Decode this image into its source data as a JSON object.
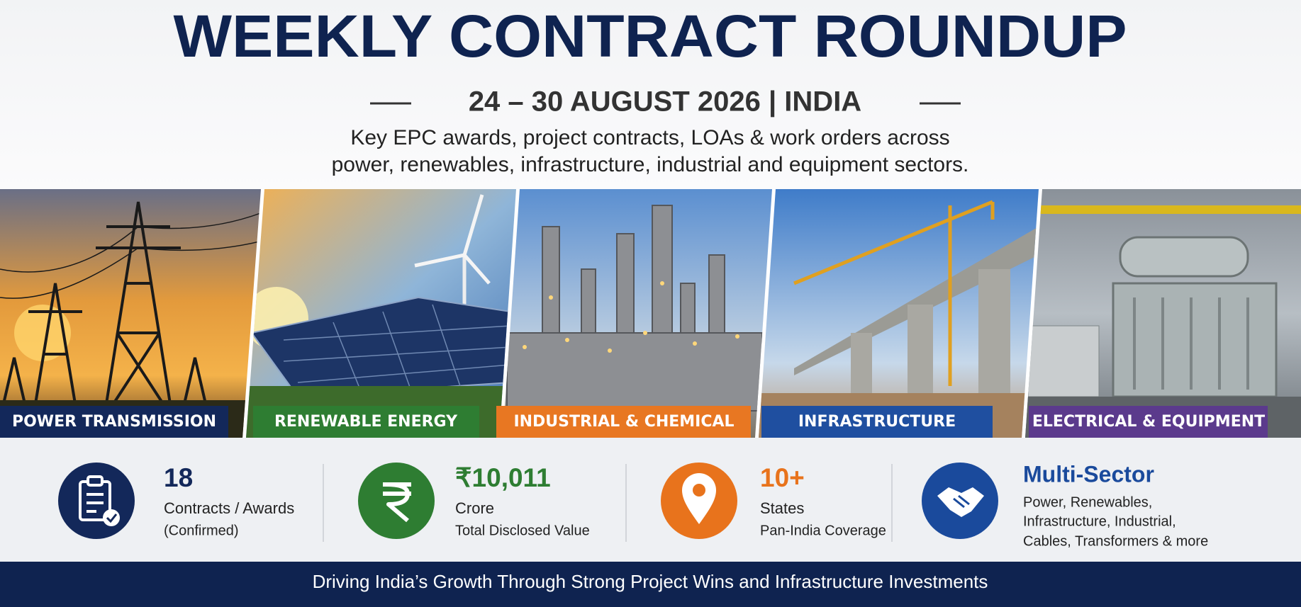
{
  "header": {
    "title": "WEEKLY CONTRACT ROUNDUP",
    "subtitle": "24 – 30 AUGUST 2026 | INDIA",
    "description": [
      "Key EPC awards, project contracts, LOAs & work orders across",
      "power, renewables, infrastructure, industrial and equipment sectors."
    ]
  },
  "sectors": [
    "POWER TRANSMISSION",
    "RENEWABLE ENERGY",
    "INDUSTRIAL & CHEMICAL",
    "INFRASTRUCTURE",
    "ELECTRICAL & EQUIPMENT"
  ],
  "stats": [
    {
      "value": "18",
      "label": "Contracts / Awards",
      "note": "(Confirmed)"
    },
    {
      "value": "₹10,011",
      "label": "Crore",
      "note": "Total Disclosed Value"
    },
    {
      "value": "10+",
      "label": "States",
      "note": "Pan-India Coverage"
    },
    {
      "value": "Multi-Sector",
      "lines": [
        "Power, Renewables,",
        "Infrastructure, Industrial,",
        "Cables, Transformers & more"
      ]
    }
  ],
  "footer": "Driving India’s Growth Through Strong Project Wins and Infrastructure Investments"
}
